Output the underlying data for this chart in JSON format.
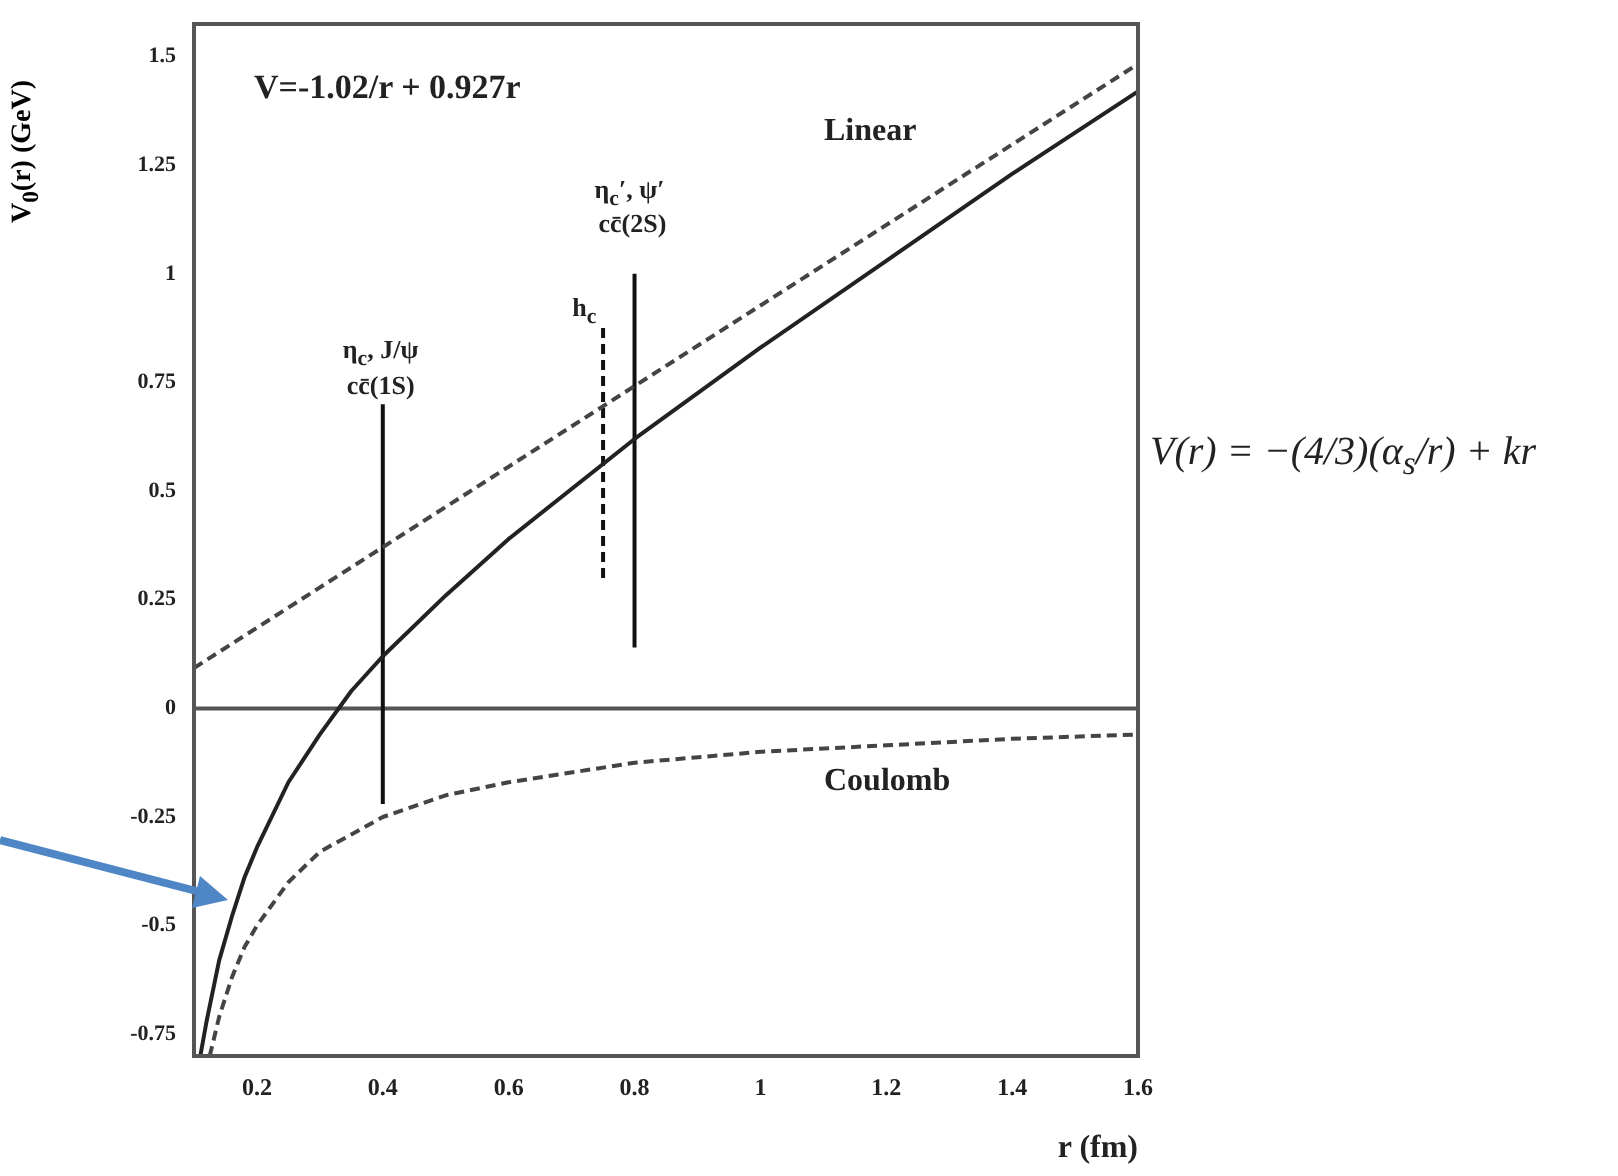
{
  "chart_data": {
    "type": "line",
    "xlabel": "r (fm)",
    "ylabel": "V$_{0}$(r) (GeV)",
    "xlim": [
      0.1,
      1.6
    ],
    "xticks": [
      0.2,
      0.4,
      0.6,
      0.8,
      1,
      1.2,
      1.4,
      1.6
    ],
    "ylim": [
      -0.8,
      1.575
    ],
    "yticks": [
      -0.75,
      -0.5,
      -0.25,
      0,
      0.25,
      0.5,
      0.75,
      1,
      1.25,
      1.5
    ],
    "grid": false,
    "legend": false,
    "marker": "none",
    "series": [
      {
        "color": "#444444",
        "line_style": "dashed",
        "x": [
          0.1,
          1.6
        ],
        "values": [
          0.093,
          1.483
        ]
      },
      {
        "color": "#222222",
        "line_style": "solid",
        "x": [
          0.11,
          0.12,
          0.14,
          0.16,
          0.18,
          0.2,
          0.25,
          0.3,
          0.35,
          0.4,
          0.5,
          0.6,
          0.8,
          1.0,
          1.2,
          1.4,
          1.6
        ],
        "values": [
          -0.8,
          -0.72,
          -0.58,
          -0.48,
          -0.39,
          -0.32,
          -0.17,
          -0.06,
          0.04,
          0.12,
          0.26,
          0.39,
          0.62,
          0.83,
          1.03,
          1.23,
          1.42
        ]
      },
      {
        "color": "#444444",
        "line_style": "dashed",
        "x": [
          0.125,
          0.14,
          0.16,
          0.18,
          0.2,
          0.25,
          0.3,
          0.35,
          0.4,
          0.5,
          0.6,
          0.8,
          1.0,
          1.2,
          1.4,
          1.6
        ],
        "values": [
          -0.8,
          -0.71,
          -0.62,
          -0.55,
          -0.5,
          -0.4,
          -0.33,
          -0.29,
          -0.25,
          -0.2,
          -0.17,
          -0.125,
          -0.1,
          -0.085,
          -0.07,
          -0.06
        ]
      },
      {
        "color": "#111111",
        "line_style": "solid",
        "x": [
          0.4,
          0.4
        ],
        "values": [
          -0.22,
          0.7
        ]
      },
      {
        "color": "#111111",
        "line_style": "dashed",
        "x": [
          0.75,
          0.75
        ],
        "values": [
          0.3,
          0.88
        ]
      },
      {
        "color": "#111111",
        "line_style": "solid",
        "x": [
          0.8,
          0.8
        ],
        "values": [
          0.14,
          1.0
        ]
      }
    ],
    "ref_lines": [
      {
        "axis": "y",
        "value": 0,
        "color": "#555555",
        "line_style": "solid"
      }
    ],
    "annotations": [
      "V=-1.02/r + 0.927r",
      "Linear",
      "Coulomb",
      "V(r) = −(4/3)(α$_{s}$/r) + kr",
      "η$_{c}$, J/ψ",
      "cc̄(1S)",
      "h$_{c}$",
      "η$_{c}$′, ψ′",
      "cc̄(2S)"
    ]
  }
}
